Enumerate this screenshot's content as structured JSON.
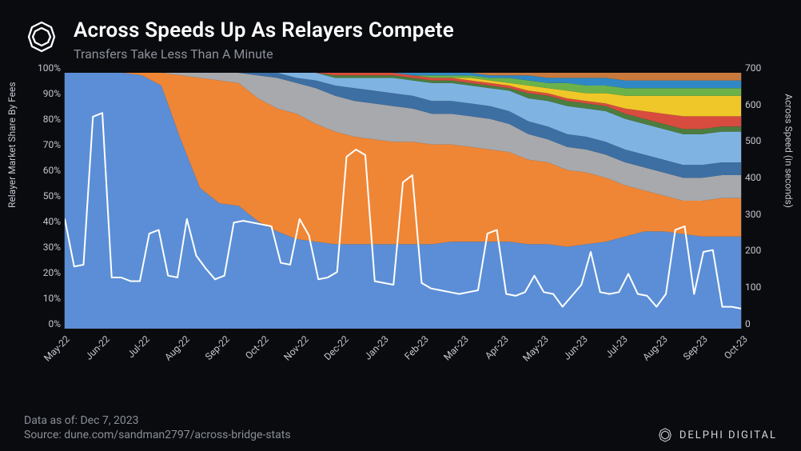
{
  "header": {
    "title": "Across Speeds Up As Relayers Compete",
    "subtitle": "Transfers Take Less Than A Minute"
  },
  "footer": {
    "data_asof": "Data as of: Dec 7, 2023",
    "source": "Source: dune.com/sandman2797/across-bridge-stats",
    "brand": "DELPHI DIGITAL"
  },
  "chart": {
    "type": "stacked-area-plus-line",
    "background_color": "#0a0b0f",
    "font_family": "system-ui",
    "axis_color": "#c3c7cf",
    "line_color": "#ffffff",
    "line_width": 2,
    "y_left": {
      "label": "Relayer Market Share By Fees",
      "min": 0,
      "max": 100,
      "step": 10,
      "suffix": "%",
      "label_fontsize": 12
    },
    "y_right": {
      "label": "Across Speed (in seconds)",
      "min": 0,
      "max": 700,
      "step": 100,
      "suffix": "",
      "label_fontsize": 12
    },
    "x": {
      "labels": [
        "May-22",
        "Jun-22",
        "Jul-22",
        "Aug-22",
        "Sep-22",
        "Oct-22",
        "Nov-22",
        "Dec-22",
        "Jan-23",
        "Feb-23",
        "Mar-23",
        "Apr-23",
        "May-23",
        "Jun-23",
        "Jul-23",
        "Aug-23",
        "Sep-23",
        "Oct-23"
      ],
      "label_fontsize": 12,
      "rotation_deg": -45
    },
    "series_colors": {
      "a": "#5b8ed6",
      "b": "#ef8636",
      "c": "#a7a9ad",
      "d": "#3d6fa3",
      "e": "#7fb4e2",
      "f": "#4c7d3f",
      "g": "#d74c3e",
      "h": "#efc728",
      "i": "#6bb24b",
      "j": "#2f88c5",
      "k": "#c9793c"
    },
    "series_stack_pct": {
      "a": [
        100,
        100,
        100,
        100,
        99,
        95,
        74,
        55,
        49,
        48,
        42,
        38,
        35,
        34,
        33,
        33,
        33,
        33,
        33,
        33,
        34,
        34,
        34,
        34,
        33,
        33,
        32,
        33,
        34,
        36,
        38,
        38,
        37,
        36,
        36,
        36
      ],
      "b": [
        0,
        0,
        0,
        0,
        1,
        5,
        25,
        43,
        48,
        48,
        48,
        48,
        49,
        46,
        44,
        42,
        41,
        40,
        40,
        39,
        38,
        37,
        36,
        35,
        33,
        32,
        30,
        28,
        25,
        20,
        16,
        14,
        13,
        14,
        15,
        15
      ],
      "c": [
        0,
        0,
        0,
        0,
        0,
        0,
        1,
        2,
        3,
        4,
        9,
        12,
        12,
        14,
        14,
        14,
        14,
        14,
        13,
        12,
        12,
        12,
        12,
        11,
        10,
        9,
        9,
        9,
        9,
        9,
        9,
        9,
        9,
        9,
        9,
        9
      ],
      "d": [
        0,
        0,
        0,
        0,
        0,
        0,
        0,
        0,
        0,
        0,
        1,
        2,
        2,
        3,
        4,
        5,
        5,
        5,
        5,
        5,
        5,
        5,
        5,
        5,
        5,
        5,
        5,
        5,
        5,
        5,
        5,
        5,
        5,
        5,
        5,
        5
      ],
      "e": [
        0,
        0,
        0,
        0,
        0,
        0,
        0,
        0,
        0,
        0,
        0,
        0,
        2,
        3,
        3,
        4,
        5,
        6,
        6,
        7,
        7,
        7,
        7,
        8,
        9,
        10,
        11,
        11,
        12,
        12,
        12,
        12,
        12,
        12,
        12,
        12
      ],
      "f": [
        0,
        0,
        0,
        0,
        0,
        0,
        0,
        0,
        0,
        0,
        0,
        0,
        0,
        0,
        1,
        1,
        1,
        1,
        1,
        1,
        1,
        1,
        1,
        1,
        2,
        2,
        2,
        2,
        2,
        2,
        2,
        2,
        2,
        2,
        2,
        2
      ],
      "g": [
        0,
        0,
        0,
        0,
        0,
        0,
        0,
        0,
        0,
        0,
        0,
        0,
        0,
        0,
        1,
        1,
        1,
        1,
        1,
        1,
        1,
        1,
        1,
        1,
        1,
        1,
        1,
        1,
        1,
        2,
        3,
        4,
        5,
        5,
        4,
        4
      ],
      "h": [
        0,
        0,
        0,
        0,
        0,
        0,
        0,
        0,
        0,
        0,
        0,
        0,
        0,
        0,
        0,
        0,
        0,
        0,
        0,
        0,
        0,
        1,
        1,
        1,
        2,
        2,
        3,
        3,
        4,
        5,
        6,
        7,
        8,
        8,
        8,
        8
      ],
      "i": [
        0,
        0,
        0,
        0,
        0,
        0,
        0,
        0,
        0,
        0,
        0,
        0,
        0,
        0,
        0,
        0,
        0,
        0,
        0,
        1,
        1,
        1,
        1,
        2,
        2,
        2,
        3,
        3,
        3,
        3,
        3,
        3,
        3,
        3,
        3,
        3
      ],
      "j": [
        0,
        0,
        0,
        0,
        0,
        0,
        0,
        0,
        0,
        0,
        0,
        0,
        0,
        0,
        0,
        0,
        0,
        0,
        1,
        1,
        1,
        1,
        1,
        1,
        2,
        2,
        2,
        3,
        3,
        3,
        3,
        3,
        3,
        3,
        3,
        3
      ],
      "k": [
        0,
        0,
        0,
        0,
        0,
        0,
        0,
        0,
        0,
        0,
        0,
        0,
        0,
        0,
        0,
        0,
        0,
        0,
        0,
        0,
        0,
        0,
        1,
        1,
        1,
        2,
        2,
        2,
        2,
        3,
        3,
        3,
        3,
        3,
        3,
        3
      ]
    },
    "speed_line_seconds": [
      300,
      170,
      175,
      580,
      590,
      140,
      140,
      130,
      130,
      260,
      270,
      145,
      140,
      300,
      200,
      165,
      135,
      145,
      290,
      295,
      290,
      285,
      280,
      180,
      175,
      300,
      255,
      135,
      140,
      155,
      470,
      490,
      475,
      130,
      125,
      120,
      400,
      420,
      125,
      110,
      105,
      100,
      95,
      100,
      105,
      260,
      270,
      95,
      90,
      100,
      145,
      100,
      95,
      60,
      90,
      120,
      210,
      100,
      95,
      100,
      150,
      95,
      90,
      60,
      95,
      270,
      280,
      95,
      210,
      215,
      60,
      60,
      55
    ]
  }
}
